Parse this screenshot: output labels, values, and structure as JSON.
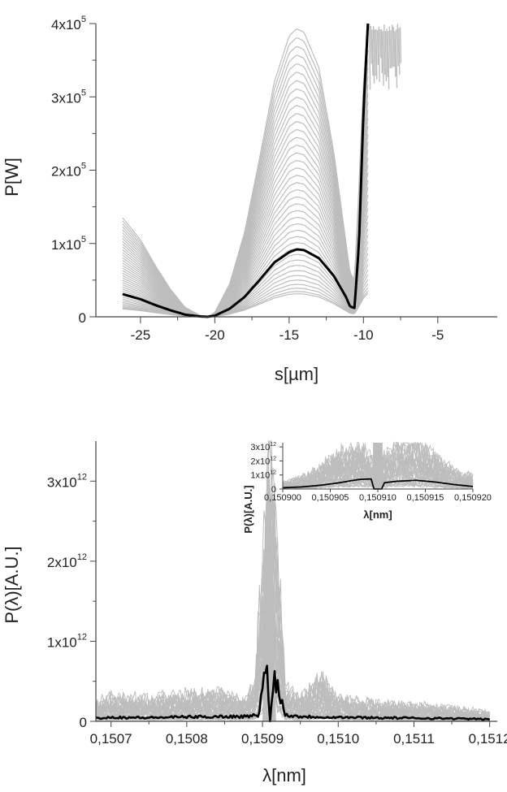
{
  "chart_data": [
    {
      "type": "line",
      "xlabel": "s[µm]",
      "ylabel": "P[W]",
      "xlim": [
        -28,
        -1
      ],
      "ylim": [
        0,
        400000
      ],
      "x_ticks": [
        -25,
        -20,
        -15,
        -10,
        -5
      ],
      "x_tick_labels": [
        "-25",
        "-20",
        "-15",
        "-10",
        "-5"
      ],
      "y_ticks": [
        0,
        100000,
        200000,
        300000,
        400000
      ],
      "y_tick_labels": [
        {
          "base": "0",
          "exp": ""
        },
        {
          "base": "1x10",
          "exp": "5"
        },
        {
          "base": "2x10",
          "exp": "5"
        },
        {
          "base": "3x10",
          "exp": "5"
        },
        {
          "base": "4x10",
          "exp": "5"
        }
      ],
      "grid": false,
      "colors": {
        "mean": "#000000",
        "ensemble": "#bdbdbd"
      },
      "series": [
        {
          "role": "ensemble",
          "count": 40,
          "description_peak_range": [
            15000,
            393000
          ],
          "x": [
            -26.2,
            -25,
            -24,
            -23,
            -22,
            -21,
            -20.5,
            -20,
            -19,
            -18,
            -17,
            -16,
            -15,
            -14.5,
            -14,
            -13,
            -12,
            -11.2,
            -10.9,
            -10.6,
            -10.3,
            -10,
            -9.7
          ],
          "values_max": [
            135000,
            105000,
            70000,
            38000,
            13000,
            2000,
            0,
            6000,
            45000,
            115000,
            215000,
            320000,
            383000,
            393000,
            388000,
            340000,
            225000,
            105000,
            60000,
            50000,
            180000,
            320000,
            400000
          ]
        },
        {
          "role": "mean",
          "x": [
            -26.2,
            -25,
            -24,
            -23,
            -22,
            -21,
            -20.5,
            -20,
            -19,
            -18,
            -17,
            -16,
            -15,
            -14.5,
            -14,
            -13,
            -12,
            -11.2,
            -10.9,
            -10.6,
            -10.3,
            -10,
            -9.7
          ],
          "values": [
            31000,
            24000,
            16000,
            9000,
            3000,
            500,
            0,
            1500,
            11000,
            27000,
            50000,
            74000,
            88000,
            92000,
            91000,
            80000,
            56000,
            28000,
            14000,
            12000,
            100000,
            280000,
            400000
          ]
        }
      ]
    },
    {
      "type": "line",
      "xlabel": "λ[nm]",
      "ylabel": "P(λ)[A.U.]",
      "xlim": [
        0.15068,
        0.15121
      ],
      "ylim": [
        0,
        3500000000000.0
      ],
      "x_ticks": [
        0.1507,
        0.1508,
        0.1509,
        0.151,
        0.1511,
        0.1512
      ],
      "x_tick_labels": [
        "0,1507",
        "0,1508",
        "0,1509",
        "0,1510",
        "0,1511",
        "0,1512"
      ],
      "y_ticks": [
        0,
        1000000000000.0,
        2000000000000.0,
        3000000000000.0
      ],
      "y_tick_labels": [
        {
          "base": "0",
          "exp": ""
        },
        {
          "base": "1x10",
          "exp": "12"
        },
        {
          "base": "2x10",
          "exp": "12"
        },
        {
          "base": "3x10",
          "exp": "12"
        }
      ],
      "grid": false,
      "colors": {
        "mean": "#000000",
        "ensemble": "#bdbdbd"
      },
      "series": [
        {
          "role": "ensemble",
          "x": [
            0.15068,
            0.1507,
            0.15075,
            0.1508,
            0.15085,
            0.150875,
            0.15089,
            0.150905,
            0.15091,
            0.150915,
            0.15093,
            0.15095,
            0.15098,
            0.151,
            0.15105,
            0.1511,
            0.15115,
            0.1512
          ],
          "values_max": [
            200000000000.0,
            280000000000.0,
            250000000000.0,
            300000000000.0,
            300000000000.0,
            230000000000.0,
            400000000000.0,
            2600000000000.0,
            3100000000000.0,
            2700000000000.0,
            400000000000.0,
            250000000000.0,
            500000000000.0,
            250000000000.0,
            200000000000.0,
            180000000000.0,
            150000000000.0,
            100000000000.0
          ]
        },
        {
          "role": "mean",
          "x": [
            0.15068,
            0.1507,
            0.15075,
            0.1508,
            0.15085,
            0.15088,
            0.150895,
            0.150905,
            0.15091,
            0.150915,
            0.15093,
            0.15095,
            0.151,
            0.15105,
            0.1511,
            0.15115,
            0.1512
          ],
          "values": [
            40000000000.0,
            50000000000.0,
            45000000000.0,
            55000000000.0,
            60000000000.0,
            60000000000.0,
            80000000000.0,
            720000000000.0,
            0,
            620000000000.0,
            80000000000.0,
            60000000000.0,
            50000000000.0,
            45000000000.0,
            40000000000.0,
            35000000000.0,
            25000000000.0
          ]
        }
      ],
      "inset": {
        "type": "line",
        "xlabel": "λ[nm]",
        "ylabel": "P(λ)[A.U.]",
        "xlim": [
          0.1509,
          0.15092
        ],
        "ylim": [
          0,
          3300000000000.0
        ],
        "x_ticks": [
          0.1509,
          0.150905,
          0.15091,
          0.150915,
          0.15092
        ],
        "x_tick_labels": [
          "0,150900",
          "0,150905",
          "0,150910",
          "0,150915",
          "0,150920"
        ],
        "y_ticks": [
          0,
          1000000000000.0,
          2000000000000.0,
          3000000000000.0
        ],
        "y_tick_labels": [
          {
            "base": "0",
            "exp": ""
          },
          {
            "base": "1x10",
            "exp": "12"
          },
          {
            "base": "2x10",
            "exp": "12"
          },
          {
            "base": "3x10",
            "exp": "12"
          }
        ],
        "series": [
          {
            "role": "ensemble",
            "x": [
              0.1509,
              0.150902,
              0.150904,
              0.150906,
              0.150908,
              0.1509095,
              0.1509097,
              0.1509103,
              0.1509105,
              0.150912,
              0.150914,
              0.150916,
              0.150918,
              0.15092
            ],
            "values_max": [
              400000000000.0,
              800000000000.0,
              1400000000000.0,
              2300000000000.0,
              2800000000000.0,
              2000000000000.0,
              0,
              0,
              2000000000000.0,
              2800000000000.0,
              3000000000000.0,
              2200000000000.0,
              1200000000000.0,
              800000000000.0
            ]
          },
          {
            "role": "mean",
            "x": [
              0.1509,
              0.150902,
              0.150904,
              0.150906,
              0.150908,
              0.1509093,
              0.1509096,
              0.1509104,
              0.1509107,
              0.150912,
              0.150914,
              0.150916,
              0.150918,
              0.15092
            ],
            "values": [
              90000000000.0,
              150000000000.0,
              270000000000.0,
              450000000000.0,
              680000000000.0,
              720000000000.0,
              0,
              0,
              450000000000.0,
              550000000000.0,
              620000000000.0,
              500000000000.0,
              320000000000.0,
              180000000000.0
            ]
          }
        ]
      }
    }
  ]
}
